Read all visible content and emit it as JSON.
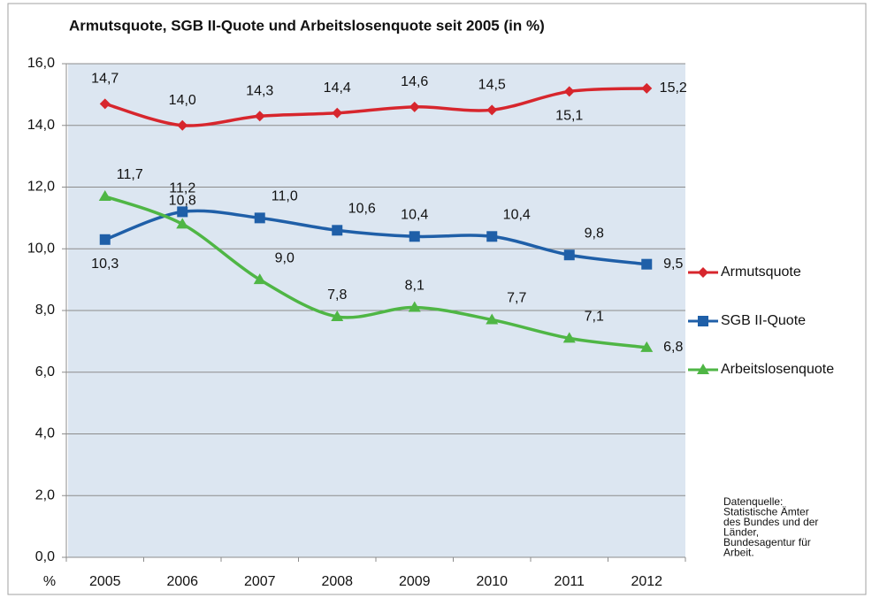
{
  "chart_data": {
    "type": "line",
    "title": "Armutsquote, SGB II-Quote und Arbeitslosenquote seit 2005 (in %)",
    "y_label": "%",
    "categories": [
      "2005",
      "2006",
      "2007",
      "2008",
      "2009",
      "2010",
      "2011",
      "2012"
    ],
    "series": [
      {
        "name": "Armutsquote",
        "color": "#d7262d",
        "marker": "diamond",
        "values": [
          14.7,
          14.0,
          14.3,
          14.4,
          14.6,
          14.5,
          15.1,
          15.2
        ],
        "value_labels": [
          "14,7",
          "14,0",
          "14,3",
          "14,4",
          "14,6",
          "14,5",
          "15,1",
          "15,2"
        ]
      },
      {
        "name": "SGB II-Quote",
        "color": "#1f5fa8",
        "marker": "square",
        "values": [
          10.3,
          11.2,
          11.0,
          10.6,
          10.4,
          10.4,
          9.8,
          9.5
        ],
        "value_labels": [
          "10,3",
          "11,2",
          "11,0",
          "10,6",
          "10,4",
          "10,4",
          "9,8",
          "9,5"
        ]
      },
      {
        "name": "Arbeitslosenquote",
        "color": "#4fb645",
        "marker": "triangle",
        "values": [
          11.7,
          10.8,
          9.0,
          7.8,
          8.1,
          7.7,
          7.1,
          6.8
        ],
        "value_labels": [
          "11,7",
          "10,8",
          "9,0",
          "7,8",
          "8,1",
          "7,7",
          "7,1",
          "6,8"
        ]
      }
    ],
    "ylim": [
      0,
      16
    ],
    "yticks": [
      {
        "value": 0,
        "label": "0,0"
      },
      {
        "value": 2,
        "label": "2,0"
      },
      {
        "value": 4,
        "label": "4,0"
      },
      {
        "value": 6,
        "label": "6,0"
      },
      {
        "value": 8,
        "label": "8,0"
      },
      {
        "value": 10,
        "label": "10,0"
      },
      {
        "value": 12,
        "label": "12,0"
      },
      {
        "value": 14,
        "label": "14,0"
      },
      {
        "value": 16,
        "label": "16,0"
      }
    ],
    "grid": true,
    "legend": "right",
    "source_note": [
      "Datenquelle:",
      "Statistische Ämter",
      "des Bundes und der",
      "Länder,",
      "Bundesagentur für",
      "Arbeit."
    ]
  }
}
